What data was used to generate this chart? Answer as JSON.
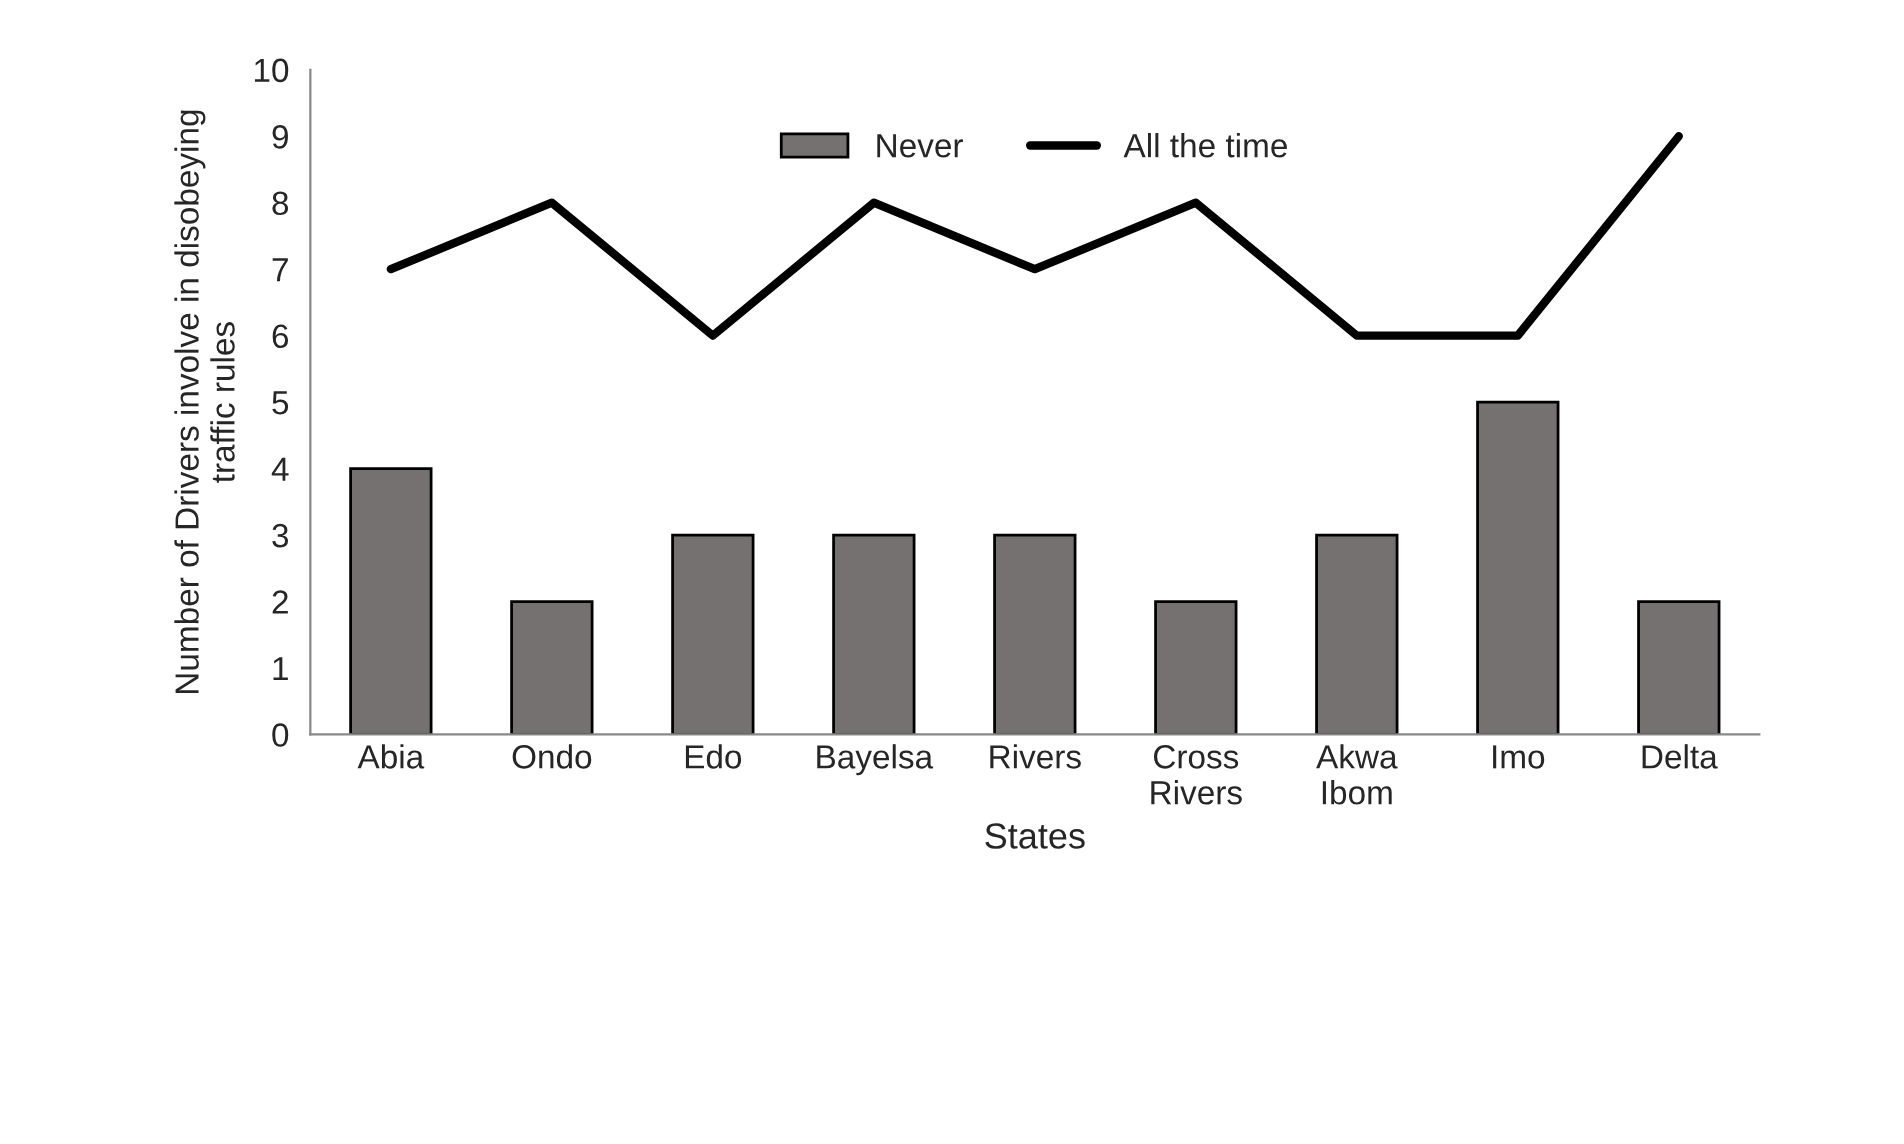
{
  "chart_data": {
    "type": "bar",
    "categories": [
      "Abia",
      "Ondo",
      "Edo",
      "Bayelsa",
      "Rivers",
      "Cross\nRivers",
      "Akwa\nIbom",
      "Imo",
      "Delta"
    ],
    "series": [
      {
        "name": "Never",
        "color": "#767171",
        "values": [
          4,
          2,
          3,
          3,
          3,
          2,
          3,
          5,
          2
        ]
      },
      {
        "name": "All the time",
        "type": "line",
        "color": "#000000",
        "values": [
          7,
          8,
          6,
          8,
          7,
          8,
          6,
          6,
          9
        ]
      }
    ],
    "xlabel": "States",
    "ylabel": "Number of Drivers involve in disobeying\ntraffic rules",
    "ylim": [
      0,
      10
    ],
    "yticks": [
      0,
      1,
      2,
      3,
      4,
      5,
      6,
      7,
      8,
      9,
      10
    ],
    "grid": false,
    "legend": "top",
    "marker": "none",
    "line_style": "solid"
  }
}
